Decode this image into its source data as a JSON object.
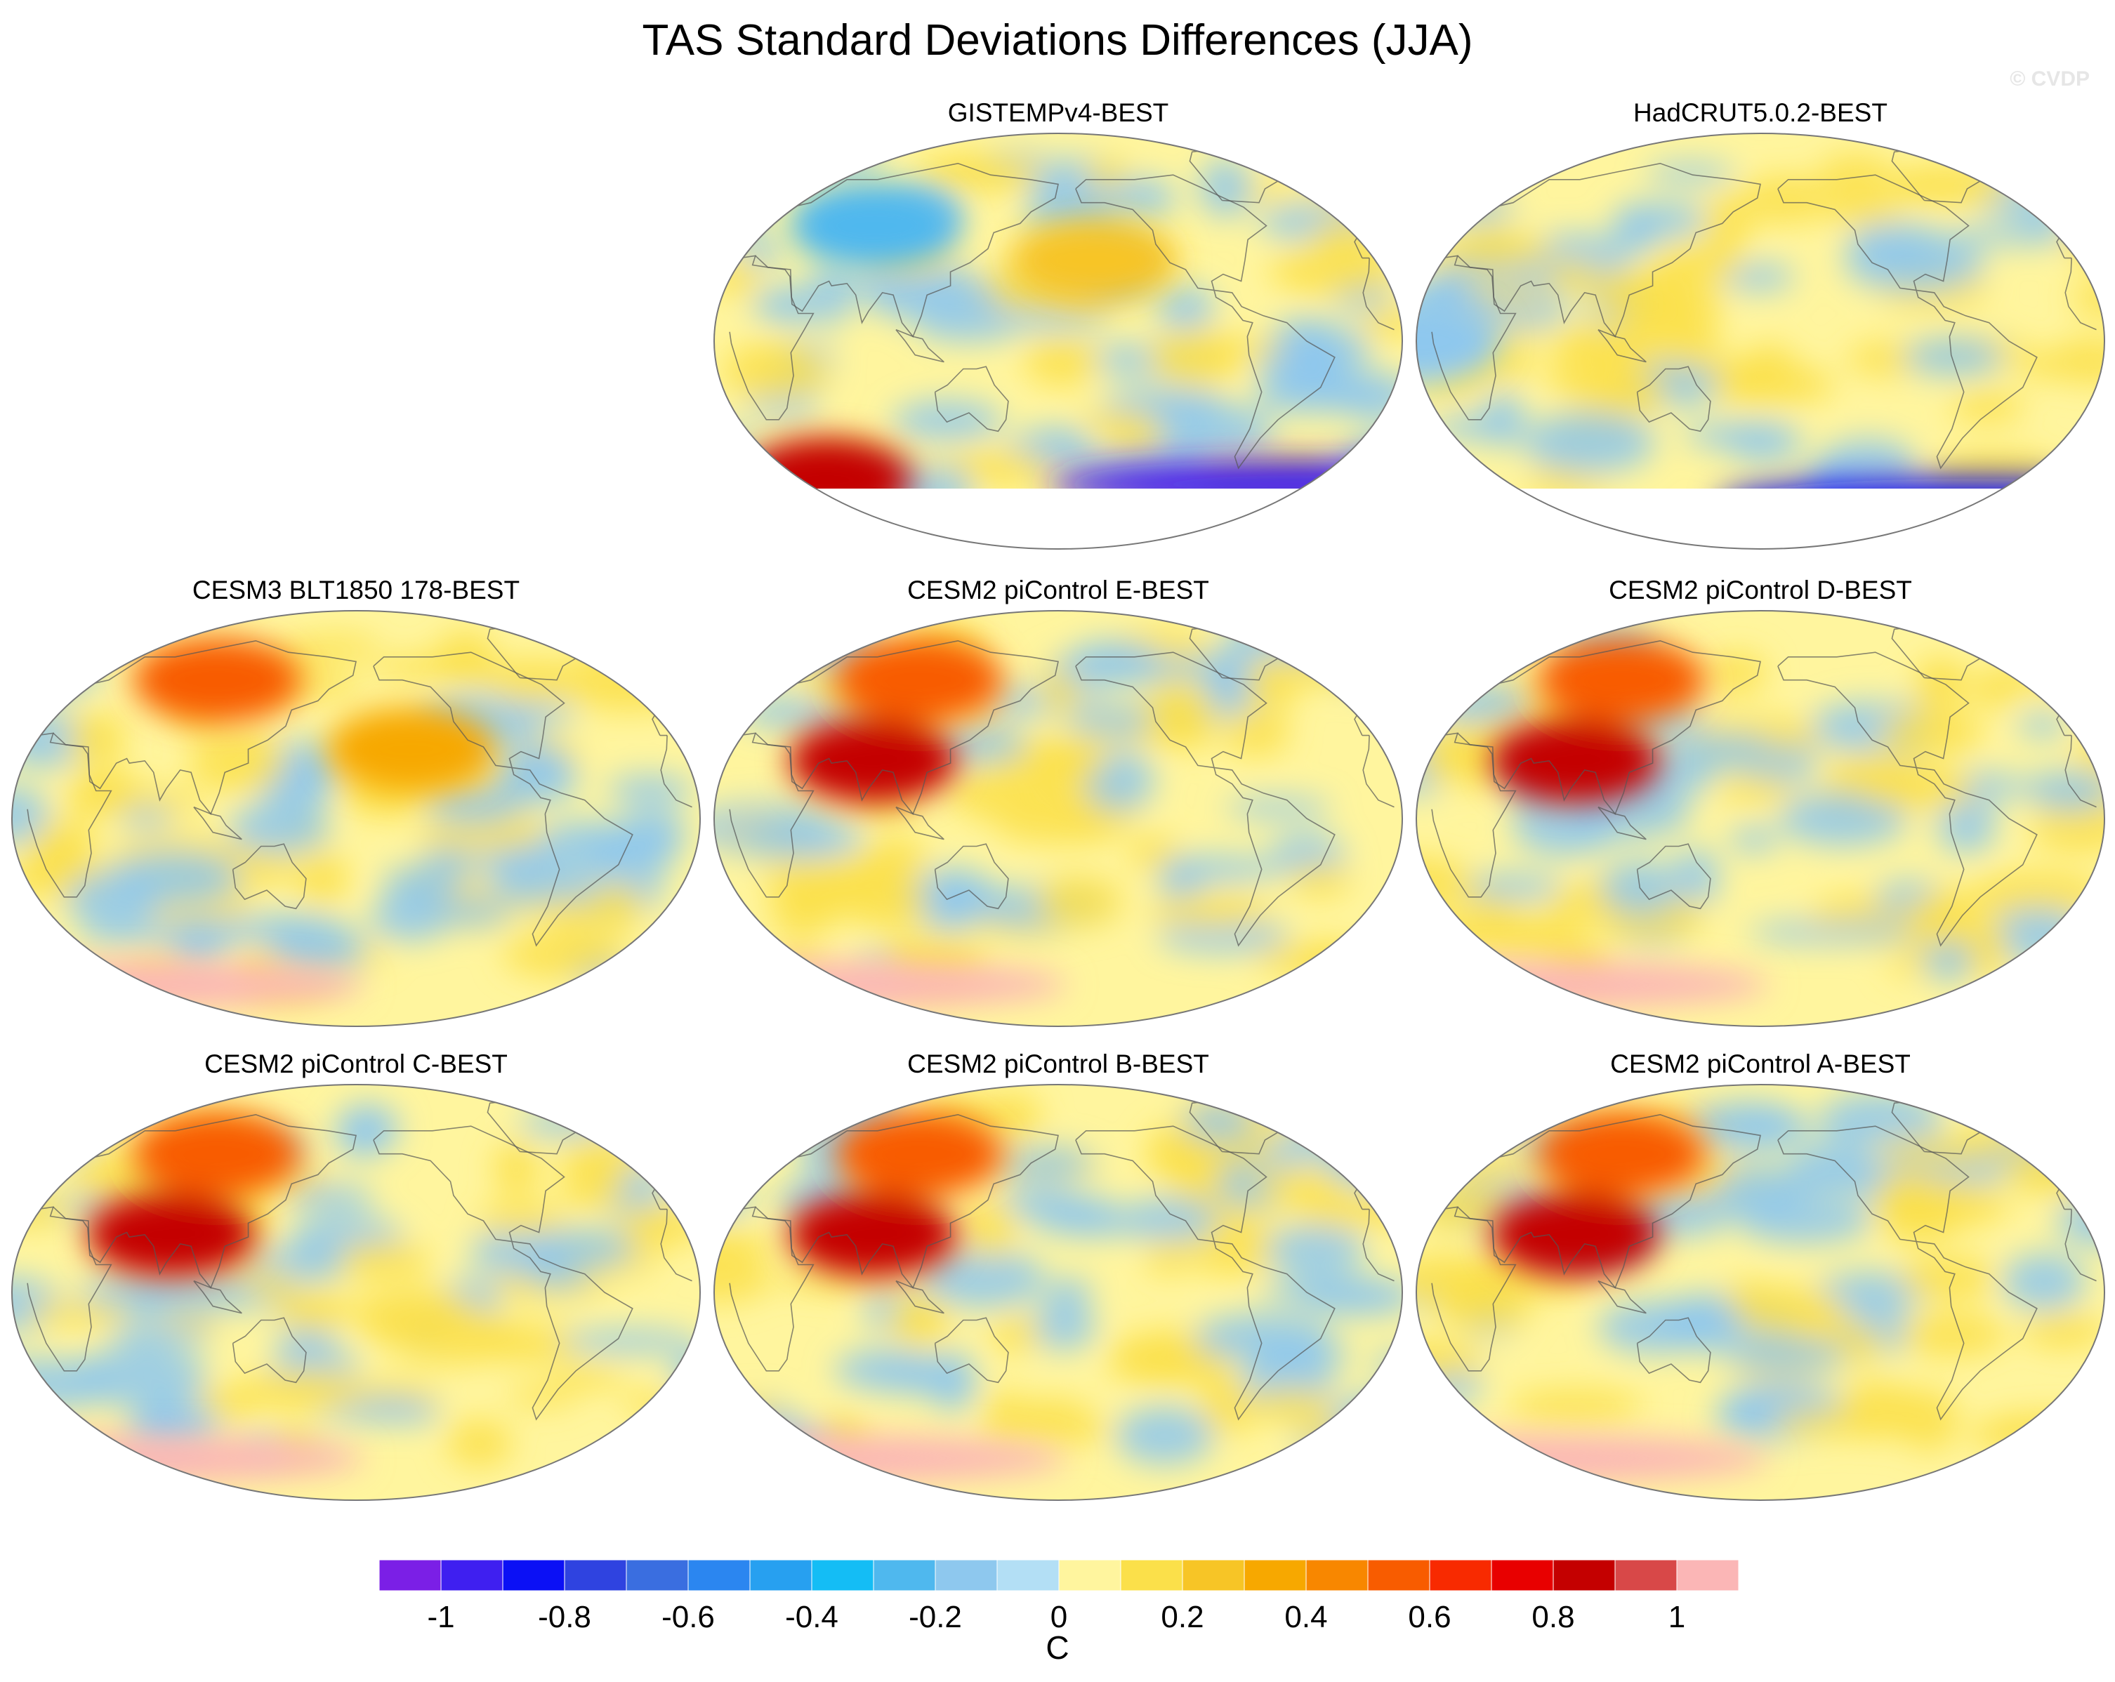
{
  "chart_data": {
    "type": "heatmap",
    "title": "TAS Standard Deviations Differences (JJA)",
    "watermark": "© CVDP",
    "projection": "robinson-like global maps",
    "panels": [
      {
        "title": "GISTEMPv4-BEST",
        "row": 0,
        "col": 1,
        "has_missing_antarctica": true,
        "regions": [
          {
            "lon": -160,
            "lat": 35,
            "value": 0.25
          },
          {
            "lon": 70,
            "lat": 50,
            "value": -0.3
          },
          {
            "lon": 30,
            "lat": -60,
            "value": 0.8
          },
          {
            "lon": -20,
            "lat": -62,
            "value": -1.0
          }
        ]
      },
      {
        "title": "HadCRUT5.0.2-BEST",
        "row": 0,
        "col": 2,
        "has_missing_antarctica": true,
        "regions": [
          {
            "lon": 0,
            "lat": 0,
            "value": -0.15
          },
          {
            "lon": -30,
            "lat": -70,
            "value": -0.9
          }
        ]
      },
      {
        "title": "CESM3 BLT1850 178-BEST",
        "row": 1,
        "col": 0,
        "has_missing_antarctica": false,
        "regions": [
          {
            "lon": 90,
            "lat": 60,
            "value": 0.55
          },
          {
            "lon": -150,
            "lat": 30,
            "value": 0.3
          },
          {
            "lon": 0,
            "lat": -72,
            "value": 1.0
          }
        ]
      },
      {
        "title": "CESM2 piControl E-BEST",
        "row": 1,
        "col": 1,
        "has_missing_antarctica": false,
        "regions": [
          {
            "lon": 90,
            "lat": 60,
            "value": 0.5
          },
          {
            "lon": 80,
            "lat": 25,
            "value": 0.8
          },
          {
            "lon": 0,
            "lat": -72,
            "value": 1.0
          }
        ]
      },
      {
        "title": "CESM2 piControl D-BEST",
        "row": 1,
        "col": 2,
        "has_missing_antarctica": false,
        "regions": [
          {
            "lon": 90,
            "lat": 60,
            "value": 0.5
          },
          {
            "lon": 80,
            "lat": 25,
            "value": 0.8
          },
          {
            "lon": 0,
            "lat": -72,
            "value": 1.0
          }
        ]
      },
      {
        "title": "CESM2 piControl C-BEST",
        "row": 2,
        "col": 0,
        "has_missing_antarctica": false,
        "regions": [
          {
            "lon": 90,
            "lat": 60,
            "value": 0.5
          },
          {
            "lon": 80,
            "lat": 25,
            "value": 0.8
          },
          {
            "lon": 0,
            "lat": -72,
            "value": 1.0
          }
        ]
      },
      {
        "title": "CESM2 piControl B-BEST",
        "row": 2,
        "col": 1,
        "has_missing_antarctica": false,
        "regions": [
          {
            "lon": 90,
            "lat": 60,
            "value": 0.5
          },
          {
            "lon": 80,
            "lat": 25,
            "value": 0.8
          },
          {
            "lon": 0,
            "lat": -72,
            "value": 1.0
          }
        ]
      },
      {
        "title": "CESM2 piControl A-BEST",
        "row": 2,
        "col": 2,
        "has_missing_antarctica": false,
        "regions": [
          {
            "lon": 90,
            "lat": 60,
            "value": 0.5
          },
          {
            "lon": 80,
            "lat": 25,
            "value": 0.8
          },
          {
            "lon": 0,
            "lat": -72,
            "value": 1.0
          }
        ]
      }
    ],
    "colorbar": {
      "unit": "C",
      "tick_labels": [
        "-1",
        "-0.8",
        "-0.6",
        "-0.4",
        "-0.2",
        "0",
        "0.2",
        "0.4",
        "0.6",
        "0.8",
        "1"
      ],
      "colors": [
        "#7b1fe6",
        "#3f1ff0",
        "#0b10f5",
        "#2f43e0",
        "#3a6ee0",
        "#2b86f0",
        "#27a0f0",
        "#14bdf5",
        "#4fb8ee",
        "#8ec8ee",
        "#b3dff5",
        "#fff59e",
        "#fbe04a",
        "#f7c526",
        "#f7a800",
        "#f88700",
        "#f85c00",
        "#f82a00",
        "#e80000",
        "#c40000",
        "#d84848",
        "#fbb6b6"
      ],
      "levels": [
        -1.1,
        -1.0,
        -0.9,
        -0.8,
        -0.7,
        -0.6,
        -0.5,
        -0.4,
        -0.3,
        -0.2,
        -0.1,
        0,
        0.1,
        0.2,
        0.3,
        0.4,
        0.5,
        0.6,
        0.7,
        0.8,
        0.9,
        1.0,
        1.1
      ]
    }
  }
}
